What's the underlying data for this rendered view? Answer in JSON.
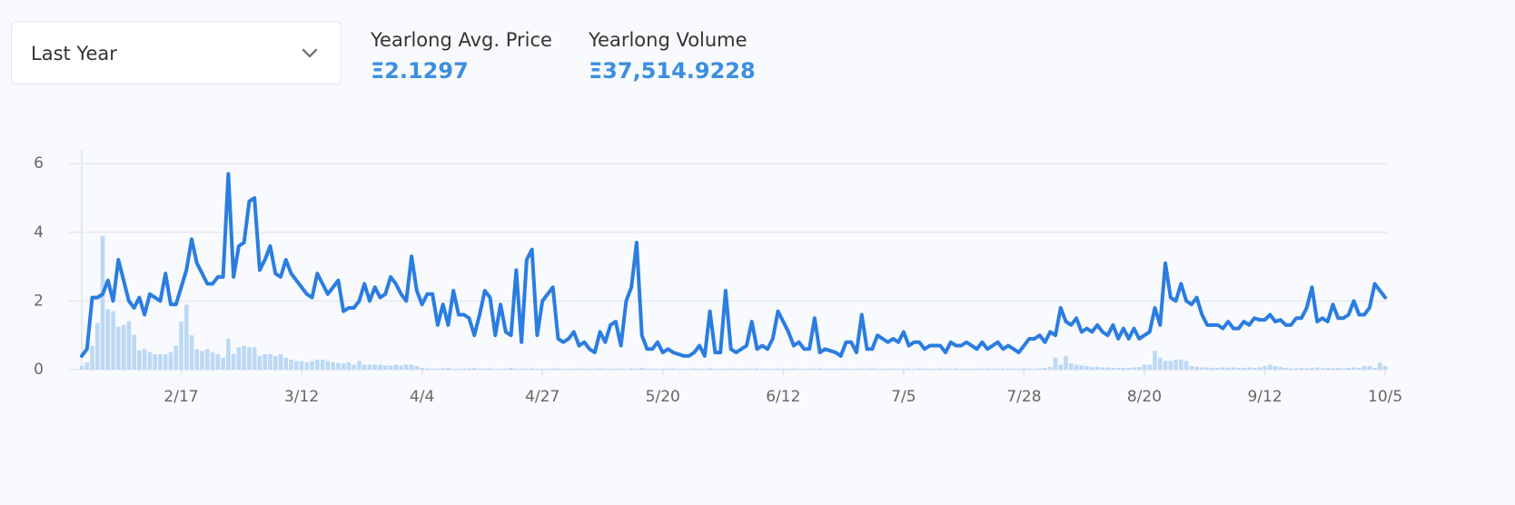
{
  "dropdown": {
    "label": "Last Year"
  },
  "stats": [
    {
      "label": "Yearlong Avg. Price",
      "value": "Ξ2.1297"
    },
    {
      "label": "Yearlong Volume",
      "value": "Ξ37,514.9228"
    }
  ],
  "chart_data": {
    "type": "line",
    "categories": [
      null,
      null,
      null,
      null,
      null,
      null,
      null,
      null,
      null,
      null,
      null,
      null,
      null,
      null,
      null,
      null,
      null,
      null,
      null,
      "2/17",
      null,
      null,
      null,
      null,
      null,
      null,
      null,
      null,
      null,
      null,
      null,
      null,
      null,
      null,
      null,
      null,
      null,
      null,
      null,
      null,
      null,
      null,
      "3/12",
      null,
      null,
      null,
      null,
      null,
      null,
      null,
      null,
      null,
      null,
      null,
      null,
      null,
      null,
      null,
      null,
      null,
      null,
      null,
      null,
      null,
      null,
      "4/4",
      null,
      null,
      null,
      null,
      null,
      null,
      null,
      null,
      null,
      null,
      null,
      null,
      null,
      null,
      null,
      null,
      null,
      null,
      null,
      null,
      null,
      null,
      "4/27",
      null,
      null,
      null,
      null,
      null,
      null,
      null,
      null,
      null,
      null,
      null,
      null,
      null,
      null,
      null,
      null,
      null,
      null,
      null,
      null,
      null,
      null,
      "5/20",
      null,
      null,
      null,
      null,
      null,
      null,
      null,
      null,
      null,
      null,
      null,
      null,
      null,
      null,
      null,
      null,
      null,
      null,
      null,
      null,
      null,
      null,
      "6/12",
      null,
      null,
      null,
      null,
      null,
      null,
      null,
      null,
      null,
      null,
      null,
      null,
      null,
      null,
      null,
      null,
      null,
      null,
      null,
      null,
      null,
      null,
      "7/5",
      null,
      null,
      null,
      null,
      null,
      null,
      null,
      null,
      null,
      null,
      null,
      null,
      null,
      null,
      null,
      null,
      null,
      null,
      null,
      null,
      null,
      null,
      "7/28",
      null,
      null,
      null,
      null,
      null,
      null,
      null,
      null,
      null,
      null,
      null,
      null,
      null,
      null,
      null,
      null,
      null,
      null,
      null,
      null,
      null,
      null,
      "8/20",
      null,
      null,
      null,
      null,
      null,
      null,
      null,
      null,
      null,
      null,
      null,
      null,
      null,
      null,
      null,
      null,
      null,
      null,
      null,
      null,
      null,
      null,
      "9/12",
      null,
      null,
      null,
      null,
      null,
      null,
      null,
      null,
      null,
      null,
      null,
      null,
      null,
      null,
      null,
      null,
      null,
      null,
      null,
      null,
      null,
      null,
      "10/5"
    ],
    "series": [
      {
        "name": "Price",
        "type": "line",
        "color": "#2a7de1",
        "values": [
          0.4,
          0.6,
          2.1,
          2.1,
          2.2,
          2.6,
          2.0,
          3.2,
          2.6,
          2.0,
          1.8,
          2.1,
          1.6,
          2.2,
          2.1,
          2.0,
          2.8,
          1.9,
          1.9,
          2.4,
          2.9,
          3.8,
          3.1,
          2.8,
          2.5,
          2.5,
          2.7,
          2.7,
          5.7,
          2.7,
          3.6,
          3.7,
          4.9,
          5.0,
          2.9,
          3.2,
          3.6,
          2.8,
          2.7,
          3.2,
          2.8,
          2.6,
          2.4,
          2.2,
          2.1,
          2.8,
          2.5,
          2.2,
          2.4,
          2.6,
          1.7,
          1.8,
          1.8,
          2.0,
          2.5,
          2.0,
          2.4,
          2.1,
          2.2,
          2.7,
          2.5,
          2.2,
          2.0,
          3.3,
          2.3,
          1.9,
          2.2,
          2.2,
          1.3,
          1.9,
          1.3,
          2.3,
          1.6,
          1.6,
          1.5,
          1.0,
          1.6,
          2.3,
          2.1,
          1.0,
          1.9,
          1.1,
          1.0,
          2.9,
          0.8,
          3.2,
          3.5,
          1.0,
          2.0,
          2.2,
          2.4,
          0.9,
          0.8,
          0.9,
          1.1,
          0.7,
          0.8,
          0.6,
          0.5,
          1.1,
          0.8,
          1.3,
          1.4,
          0.7,
          2.0,
          2.4,
          3.7,
          1.0,
          0.6,
          0.6,
          0.8,
          0.5,
          0.6,
          0.5,
          0.45,
          0.4,
          0.4,
          0.5,
          0.7,
          0.4,
          1.7,
          0.5,
          0.5,
          2.3,
          0.6,
          0.5,
          0.6,
          0.7,
          1.4,
          0.6,
          0.7,
          0.6,
          0.9,
          1.7,
          1.4,
          1.1,
          0.7,
          0.8,
          0.6,
          0.6,
          1.5,
          0.5,
          0.6,
          0.55,
          0.5,
          0.4,
          0.8,
          0.8,
          0.5,
          1.6,
          0.6,
          0.6,
          1.0,
          0.9,
          0.8,
          0.9,
          0.8,
          1.1,
          0.7,
          0.8,
          0.8,
          0.6,
          0.7,
          0.7,
          0.7,
          0.5,
          0.8,
          0.7,
          0.7,
          0.8,
          0.7,
          0.6,
          0.8,
          0.6,
          0.7,
          0.8,
          0.6,
          0.7,
          0.6,
          0.5,
          0.7,
          0.9,
          0.9,
          1.0,
          0.8,
          1.1,
          1.0,
          1.8,
          1.4,
          1.3,
          1.5,
          1.1,
          1.2,
          1.1,
          1.3,
          1.1,
          1.0,
          1.3,
          0.9,
          1.2,
          0.9,
          1.2,
          0.9,
          1.0,
          1.1,
          1.8,
          1.3,
          3.1,
          2.1,
          2.0,
          2.5,
          2.0,
          1.9,
          2.1,
          1.6,
          1.3,
          1.3,
          1.3,
          1.2,
          1.4,
          1.2,
          1.2,
          1.4,
          1.3,
          1.5,
          1.45,
          1.45,
          1.6,
          1.4,
          1.45,
          1.3,
          1.3,
          1.5,
          1.5,
          1.8,
          2.4,
          1.4,
          1.5,
          1.4,
          1.9,
          1.5,
          1.5,
          1.6,
          2.0,
          1.6,
          1.6,
          1.8,
          2.5,
          2.3,
          2.1
        ]
      },
      {
        "name": "Volume",
        "type": "bar",
        "axis": "y2",
        "color": "#bcd8f5",
        "values": [
          40,
          80,
          260,
          510,
          1460,
          660,
          640,
          470,
          490,
          530,
          380,
          210,
          225,
          190,
          170,
          170,
          170,
          190,
          260,
          525,
          710,
          375,
          225,
          205,
          225,
          190,
          170,
          130,
          340,
          170,
          245,
          260,
          245,
          245,
          150,
          170,
          170,
          150,
          170,
          130,
          110,
          95,
          95,
          80,
          95,
          110,
          110,
          95,
          80,
          75,
          70,
          80,
          55,
          95,
          55,
          55,
          55,
          55,
          45,
          45,
          55,
          45,
          55,
          55,
          40,
          20,
          15,
          12,
          10,
          15,
          20,
          10,
          8,
          12,
          15,
          18,
          12,
          10,
          15,
          8,
          10,
          12,
          20,
          10,
          8,
          12,
          15,
          10,
          8,
          10,
          12,
          15,
          10,
          8,
          10,
          10,
          12,
          8,
          10,
          15,
          10,
          8,
          12,
          10,
          8,
          15,
          10,
          20,
          12,
          10,
          8,
          10,
          12,
          15,
          10,
          10,
          8,
          12,
          10,
          10,
          15,
          10,
          8,
          10,
          12,
          8,
          10,
          12,
          10,
          15,
          10,
          8,
          10,
          12,
          10,
          10,
          12,
          8,
          10,
          10,
          12,
          15,
          10,
          8,
          10,
          12,
          10,
          8,
          10,
          12,
          10,
          15,
          10,
          8,
          12,
          10,
          8,
          10,
          12,
          10,
          15,
          10,
          8,
          10,
          12,
          10,
          12,
          15,
          10,
          8,
          10,
          12,
          10,
          15,
          12,
          10,
          12,
          15,
          12,
          10,
          15,
          12,
          10,
          15,
          20,
          30,
          130,
          55,
          150,
          70,
          55,
          45,
          40,
          30,
          30,
          25,
          25,
          20,
          20,
          20,
          20,
          25,
          30,
          55,
          55,
          205,
          130,
          95,
          95,
          110,
          110,
          95,
          40,
          30,
          25,
          25,
          20,
          20,
          25,
          20,
          25,
          20,
          20,
          25,
          20,
          25,
          40,
          55,
          40,
          30,
          20,
          15,
          15,
          20,
          15,
          20,
          25,
          15,
          20,
          15,
          20,
          15,
          20,
          25,
          20,
          40,
          40,
          20,
          75,
          40
        ]
      }
    ],
    "ylim": [
      0,
      6.4
    ],
    "yticks": [
      0,
      2,
      4,
      6
    ],
    "y2lim": [
      0,
      2400
    ],
    "grid": true
  }
}
